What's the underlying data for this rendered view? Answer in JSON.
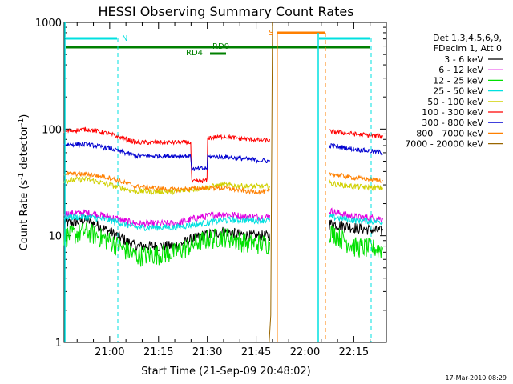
{
  "chart_data": {
    "type": "line",
    "title": "HESSI Observing Summary Count Rates",
    "xlabel": "Start Time (21-Sep-09 20:48:02)",
    "ylabel_main": "Count Rate (s",
    "ylabel_sup1": "-1",
    "ylabel_mid": " detector",
    "ylabel_sup2": "-1",
    "ylabel_end": ")",
    "yscale": "log",
    "ylim": [
      1,
      1000
    ],
    "xlim_minutes": [
      -2,
      97
    ],
    "x_tick_labels": [
      {
        "label": "21:00",
        "min": 12
      },
      {
        "label": "21:15",
        "min": 27
      },
      {
        "label": "21:30",
        "min": 42
      },
      {
        "label": "21:45",
        "min": 57
      },
      {
        "label": "22:00",
        "min": 72
      },
      {
        "label": "22:15",
        "min": 87
      }
    ],
    "y_tick_labels": [
      {
        "label": "1000",
        "value": 1000
      },
      {
        "label": "100",
        "value": 100
      },
      {
        "label": "10",
        "value": 10
      },
      {
        "label": "1",
        "value": 1
      }
    ],
    "legend": {
      "header": [
        "Det 1,3,4,5,6,9,",
        "FDecim 1, Att 0"
      ],
      "placement": "right"
    },
    "series": [
      {
        "name": "3 - 6 keV",
        "color": "#000000",
        "points": [
          [
            -2,
            13
          ],
          [
            5,
            14
          ],
          [
            12,
            11
          ],
          [
            20,
            8
          ],
          [
            32,
            8
          ],
          [
            40,
            10
          ],
          [
            47,
            11
          ],
          [
            55,
            10
          ],
          [
            61,
            10
          ],
          [
            80,
            13
          ],
          [
            87,
            12
          ],
          [
            96,
            11
          ]
        ]
      },
      {
        "name": "6 - 12 keV",
        "color": "#e000e0",
        "points": [
          [
            -2,
            16
          ],
          [
            5,
            16.5
          ],
          [
            12,
            15
          ],
          [
            20,
            13
          ],
          [
            32,
            13
          ],
          [
            40,
            15
          ],
          [
            47,
            16
          ],
          [
            55,
            15
          ],
          [
            61,
            15
          ],
          [
            80,
            17
          ],
          [
            87,
            15
          ],
          [
            96,
            14.5
          ]
        ]
      },
      {
        "name": "12 - 25 keV",
        "color": "#00e000",
        "points": [
          [
            -2,
            10
          ],
          [
            5,
            11
          ],
          [
            12,
            9
          ],
          [
            20,
            6.5
          ],
          [
            32,
            7
          ],
          [
            40,
            9
          ],
          [
            47,
            10
          ],
          [
            55,
            8.5
          ],
          [
            61,
            8.5
          ],
          [
            80,
            11
          ],
          [
            87,
            8
          ],
          [
            96,
            7.5
          ]
        ]
      },
      {
        "name": "25 - 50 keV",
        "color": "#00e0e0",
        "points": [
          [
            -2,
            15
          ],
          [
            5,
            15
          ],
          [
            12,
            14
          ],
          [
            20,
            12
          ],
          [
            32,
            12
          ],
          [
            40,
            13
          ],
          [
            47,
            14
          ],
          [
            55,
            14
          ],
          [
            61,
            14
          ],
          [
            80,
            15
          ],
          [
            87,
            14
          ],
          [
            96,
            13.5
          ]
        ]
      },
      {
        "name": "50 - 100 keV",
        "color": "#d0d000",
        "points": [
          [
            -2,
            33
          ],
          [
            5,
            34
          ],
          [
            12,
            30
          ],
          [
            20,
            26
          ],
          [
            32,
            26
          ],
          [
            40,
            28
          ],
          [
            47,
            30
          ],
          [
            55,
            29
          ],
          [
            61,
            29
          ],
          [
            80,
            31
          ],
          [
            87,
            29
          ],
          [
            96,
            28
          ]
        ]
      },
      {
        "name": "100 - 300 keV",
        "color": "#ff0000",
        "points": [
          [
            -2,
            95
          ],
          [
            5,
            100
          ],
          [
            12,
            90
          ],
          [
            20,
            75
          ],
          [
            37,
            75
          ],
          [
            37.1,
            32
          ],
          [
            42,
            33
          ],
          [
            42.1,
            83
          ],
          [
            47,
            85
          ],
          [
            55,
            80
          ],
          [
            61,
            78
          ],
          [
            80,
            95
          ],
          [
            87,
            90
          ],
          [
            96,
            85
          ]
        ]
      },
      {
        "name": "300 - 800 keV",
        "color": "#0000d0",
        "points": [
          [
            -2,
            72
          ],
          [
            5,
            72
          ],
          [
            12,
            66
          ],
          [
            20,
            56
          ],
          [
            37,
            56
          ],
          [
            37.1,
            42
          ],
          [
            42,
            43
          ],
          [
            42.1,
            55
          ],
          [
            47,
            55
          ],
          [
            55,
            52
          ],
          [
            61,
            50
          ],
          [
            80,
            70
          ],
          [
            87,
            65
          ],
          [
            96,
            60
          ]
        ]
      },
      {
        "name": "800 - 7000 keV",
        "color": "#ff8000",
        "points": [
          [
            -2,
            38
          ],
          [
            5,
            38
          ],
          [
            12,
            35
          ],
          [
            20,
            29
          ],
          [
            32,
            27
          ],
          [
            40,
            28
          ],
          [
            47,
            28
          ],
          [
            55,
            26
          ],
          [
            61,
            26
          ],
          [
            80,
            38
          ],
          [
            87,
            35
          ],
          [
            96,
            33
          ]
        ]
      },
      {
        "name": "7000 - 20000 keV",
        "color": "#996600",
        "points": [
          [
            61,
            1
          ],
          [
            61.5,
            1.8
          ],
          [
            62,
            1000
          ]
        ]
      }
    ],
    "state_bars": [
      {
        "label": "N",
        "color": "#00e0e0"
      },
      {
        "label": "S",
        "color": "#ff8000"
      },
      {
        "label": "RD0",
        "color": "#008000"
      },
      {
        "label": "RD4",
        "color": "#008000"
      }
    ],
    "footer_date": "17-Mar-2010 08:29"
  }
}
